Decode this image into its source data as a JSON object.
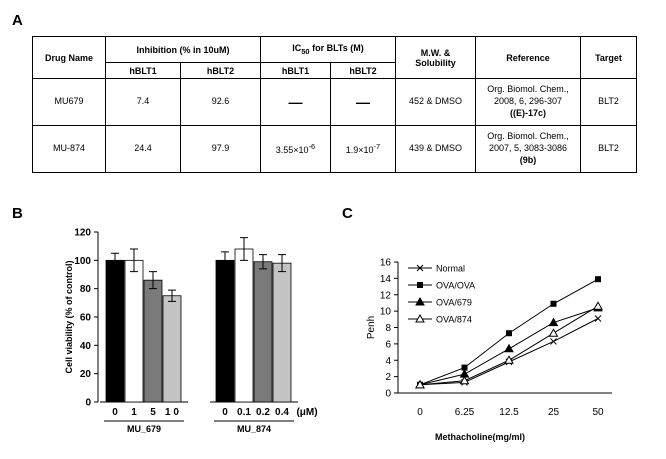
{
  "panels": [
    "A",
    "B",
    "C"
  ],
  "table": {
    "header": {
      "drug": "Drug Name",
      "inhibition": "Inhibition (% in 10uM)",
      "ic50": [
        "IC",
        "50",
        " for BLTs (M)"
      ],
      "mw": [
        "M.W. &",
        "Solubility"
      ],
      "reference": "Reference",
      "target": "Target",
      "sub": [
        "hBLT1",
        "hBLT2",
        "hBLT1",
        "hBLT2"
      ]
    },
    "rows": [
      [
        "MU679",
        "7.4",
        "92.6",
        "—",
        "—",
        "452 & DMSO",
        [
          "Org. Biomol. Chem.,",
          "2008, 6, 296-307",
          "((E)-17c)"
        ],
        "BLT2"
      ],
      [
        "MU-874",
        "24.4",
        "97.9",
        [
          "3.55×10",
          "-6"
        ],
        [
          "1.9×10",
          "-7"
        ],
        "439 & DMSO",
        [
          "Org. Biomol. Chem.,",
          "2007, 5, 3083-3086",
          "(9b)"
        ],
        "BLT2"
      ]
    ]
  },
  "chart_data": [
    {
      "type": "bar",
      "y_label": "Cell viability (% of control)",
      "unit": "(μM)",
      "ylim": [
        0,
        120
      ],
      "yticks": [
        0,
        20,
        40,
        60,
        80,
        100,
        120
      ],
      "colors": [
        "#000000",
        "#ffffff",
        "#7a7a7a",
        "#c4c4c4"
      ],
      "series": [
        {
          "name": "MU_679",
          "categories": [
            "0",
            "1",
            "5",
            "1 0"
          ],
          "values": [
            100,
            100,
            86,
            75
          ],
          "errors": [
            5,
            8,
            6,
            4
          ]
        },
        {
          "name": "MU_874",
          "categories": [
            "0",
            "0.1",
            "0.2",
            "0.4"
          ],
          "values": [
            100,
            108,
            99,
            98
          ],
          "errors": [
            6,
            8,
            5,
            6
          ]
        }
      ]
    },
    {
      "type": "line",
      "y_label": "Penh",
      "x_label": "Methacholine(mg/ml)",
      "categories": [
        "0",
        "6.25",
        "12.5",
        "25",
        "50"
      ],
      "ylim": [
        0,
        16
      ],
      "yticks": [
        0,
        2,
        4,
        6,
        8,
        10,
        12,
        14,
        16
      ],
      "series": [
        {
          "name": "Normal",
          "marker": "x",
          "color": "#000000",
          "values": [
            1,
            1.3,
            3.8,
            6.3,
            9.1
          ]
        },
        {
          "name": "OVA/OVA",
          "marker": "square",
          "color": "#000000",
          "values": [
            1,
            3.1,
            7.3,
            10.9,
            13.9
          ]
        },
        {
          "name": "OVA/679",
          "marker": "triangle",
          "color": "#000000",
          "values": [
            1,
            2.3,
            5.4,
            8.6,
            10.4
          ]
        },
        {
          "name": "OVA/874",
          "marker": "open-triangle",
          "color": "#000000",
          "values": [
            1,
            1.5,
            4,
            7.3,
            10.6
          ]
        }
      ]
    }
  ]
}
